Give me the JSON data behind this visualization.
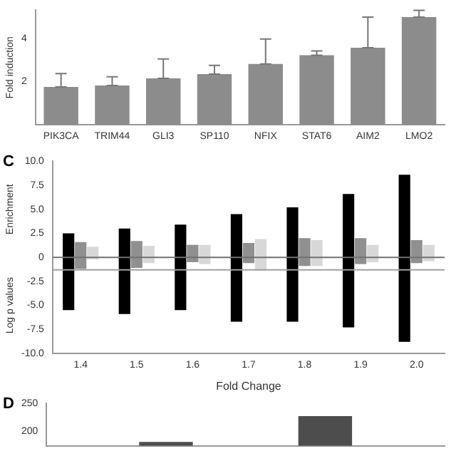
{
  "chart_data": [
    {
      "type": "bar",
      "ylabel": "Fold induction",
      "categories": [
        "PIK3CA",
        "TRIM44",
        "GLI3",
        "SP110",
        "NFIX",
        "STAT6",
        "AIM2",
        "LMO2"
      ],
      "values": [
        1.75,
        1.82,
        2.15,
        2.35,
        2.82,
        3.22,
        3.57,
        4.98
      ],
      "color": "#8c8c8c",
      "errors": [
        [
          1.75,
          2.37
        ],
        [
          1.82,
          2.22
        ],
        [
          2.15,
          3.05
        ],
        [
          2.35,
          2.75
        ],
        [
          2.82,
          3.97
        ],
        [
          3.22,
          3.42
        ],
        [
          3.57,
          4.98
        ],
        [
          4.98,
          5.3
        ]
      ],
      "ylim": [
        0,
        5.3
      ],
      "yticks": [
        {
          "value": 0,
          "label": null
        },
        2,
        4
      ]
    },
    {
      "type": "bar",
      "title": "C",
      "ylabel": "Enrichment",
      "xlabel": "Fold Change",
      "annotations": [
        "Log p values"
      ],
      "categories": [
        "1.4",
        "1.5",
        "1.6",
        "1.7",
        "1.8",
        "1.9",
        "2.0"
      ],
      "series": [
        {
          "color": "#000000",
          "base": [
            -5.5,
            -5.9,
            -5.5,
            -6.7,
            -6.7,
            -7.3,
            -8.8
          ],
          "values": [
            8.0,
            8.9,
            8.9,
            11.2,
            11.9,
            13.9,
            17.4
          ]
        },
        {
          "color": "#909090",
          "base": [
            -1.2,
            -1.1,
            -0.5,
            -0.6,
            -0.9,
            -0.7,
            -0.6
          ],
          "values": [
            2.8,
            2.8,
            1.8,
            2.1,
            2.9,
            2.7,
            2.4
          ]
        },
        {
          "color": "#d8d8d8",
          "base": [
            -0.2,
            -0.6,
            -0.7,
            -1.4,
            -0.9,
            -0.5,
            -0.4
          ],
          "values": [
            1.3,
            1.8,
            2.0,
            3.3,
            2.7,
            1.8,
            1.7
          ]
        }
      ],
      "ylim": [
        -10,
        10
      ],
      "yticks": [
        {
          "value": -10,
          "label": "-10.0"
        },
        {
          "value": -7.5,
          "label": "-7.5"
        },
        {
          "value": -5,
          "label": "-5.0"
        },
        {
          "value": -2.5,
          "label": "-2.5"
        },
        0,
        {
          "value": 2.5,
          "label": "2.5"
        },
        {
          "value": 5,
          "label": "5.0"
        },
        {
          "value": 7.5,
          "label": "7.5"
        },
        {
          "value": 10,
          "label": "10.0"
        }
      ],
      "ref_lines": [
        {
          "axis": "y",
          "value": 0,
          "color": "#707070"
        },
        {
          "axis": "y",
          "value": -1.3,
          "color": "#a0a0a0"
        }
      ]
    },
    {
      "type": "bar",
      "title": "D",
      "categories": [
        null,
        null,
        null,
        null,
        null
      ],
      "values": [
        null,
        180,
        null,
        227,
        null
      ],
      "color": "#4d4d4d",
      "ylim": [
        173,
        250
      ],
      "yticks": [
        200,
        250
      ],
      "tick_labels": "y"
    }
  ]
}
